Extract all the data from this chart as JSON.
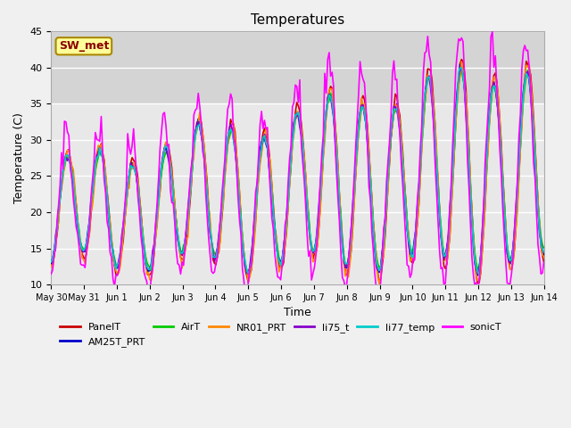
{
  "title": "Temperatures",
  "xlabel": "Time",
  "ylabel": "Temperature (C)",
  "ylim": [
    10,
    45
  ],
  "annotation_text": "SW_met",
  "x_tick_labels": [
    "May 30",
    "May 31",
    "Jun 1",
    "Jun 2",
    "Jun 3",
    "Jun 4",
    "Jun 5",
    "Jun 6",
    "Jun 7",
    "Jun 8",
    "Jun 9",
    "Jun 10",
    "Jun 11",
    "Jun 12",
    "Jun 13",
    "Jun 14"
  ],
  "x_tick_positions": [
    0,
    1,
    2,
    3,
    4,
    5,
    6,
    7,
    8,
    9,
    10,
    11,
    12,
    13,
    14,
    15
  ],
  "series_names": [
    "PanelT",
    "AM25T_PRT",
    "AirT",
    "NR01_PRT",
    "li75_t",
    "li77_temp",
    "sonicT"
  ],
  "series_colors": [
    "#cc0000",
    "#0000cc",
    "#00cc00",
    "#ff8800",
    "#8800cc",
    "#00cccc",
    "#ff00ff"
  ],
  "series_linewidths": [
    1.2,
    1.2,
    1.2,
    1.2,
    1.2,
    1.2,
    1.2
  ],
  "background_color": "#f0f0f0",
  "plot_bg_color": "#e8e8e8",
  "grid_color": "#ffffff",
  "n_points": 336,
  "days": 15,
  "shaded_ymin": 35,
  "shaded_ymax": 45,
  "yticks": [
    10,
    15,
    20,
    25,
    30,
    35,
    40,
    45
  ]
}
